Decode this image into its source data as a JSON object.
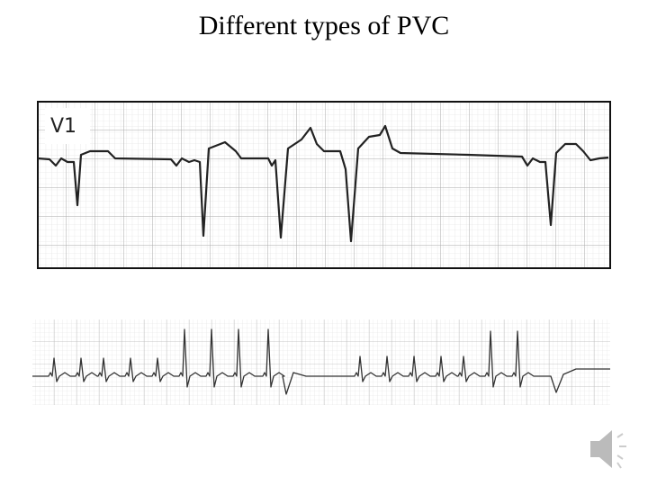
{
  "header": {
    "title": "Different types of PVC"
  },
  "strips": [
    {
      "label": "V1"
    }
  ]
}
